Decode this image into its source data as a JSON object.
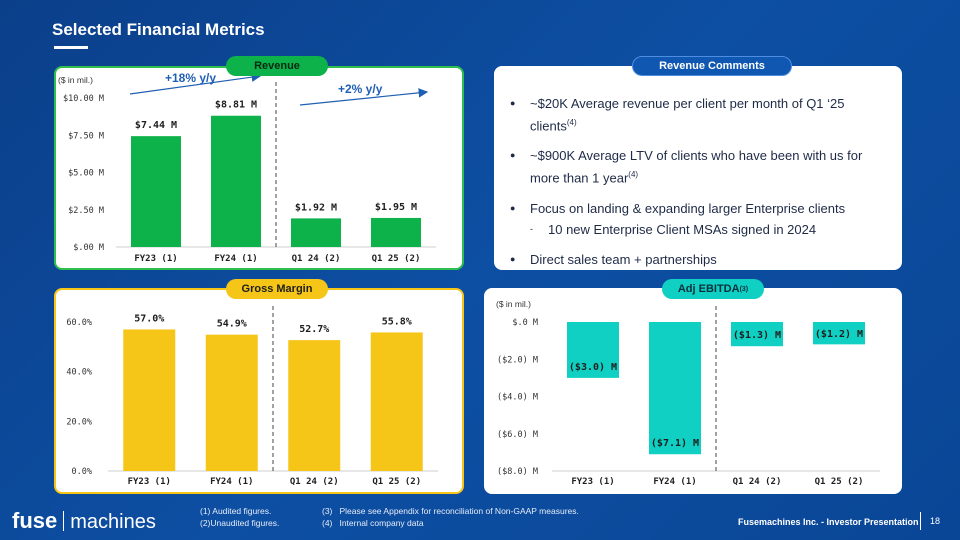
{
  "title": "Selected Financial Metrics",
  "revenue": {
    "pill": "Revenue",
    "unit_note": "($ in mil.)",
    "growth_label_1": "+18% y/y",
    "growth_label_2": "+2% y/y",
    "chart_data": {
      "type": "bar",
      "categories": [
        "FY23 (1)",
        "FY24 (1)",
        "Q1 24 (2)",
        "Q1 25 (2)"
      ],
      "values": [
        7.44,
        8.81,
        1.92,
        1.95
      ],
      "data_labels": [
        "$7.44 M",
        "$8.81 M",
        "$1.92 M",
        "$1.95 M"
      ],
      "ylim": [
        0,
        10
      ],
      "yticks": [
        0,
        2.5,
        5,
        7.5,
        10
      ],
      "ytick_labels": [
        "$.00 M",
        "$2.50 M",
        "$5.00 M",
        "$7.50 M",
        "$10.00 M"
      ],
      "color": "#0db24b"
    }
  },
  "revenue_comments": {
    "pill": "Revenue Comments",
    "bullets": [
      {
        "text": "~$20K Average revenue per client per month of Q1 ‘25 clients",
        "sup": "(4)"
      },
      {
        "text": "~$900K Average LTV of clients who have been with us for more than 1 year",
        "sup": "(4)"
      },
      {
        "text": "Focus on landing & expanding larger Enterprise clients",
        "sup": ""
      },
      {
        "text": "Direct sales team + partnerships",
        "sup": ""
      }
    ],
    "sub_bullet": "10 new Enterprise Client MSAs signed in 2024"
  },
  "gross_margin": {
    "pill": "Gross Margin",
    "chart_data": {
      "type": "bar",
      "categories": [
        "FY23 (1)",
        "FY24 (1)",
        "Q1 24 (2)",
        "Q1 25 (2)"
      ],
      "values": [
        57.0,
        54.9,
        52.7,
        55.8
      ],
      "data_labels": [
        "57.0%",
        "54.9%",
        "52.7%",
        "55.8%"
      ],
      "ylim": [
        0,
        60
      ],
      "yticks": [
        0,
        20,
        40,
        60
      ],
      "ytick_labels": [
        "0.0%",
        "20.0%",
        "40.0%",
        "60.0%"
      ],
      "color": "#f5c518"
    }
  },
  "adj_ebitda": {
    "pill": "Adj EBITDA",
    "pill_sup": "(3)",
    "unit_note": "($ in mil.)",
    "chart_data": {
      "type": "bar",
      "categories": [
        "FY23 (1)",
        "FY24 (1)",
        "Q1 24 (2)",
        "Q1 25 (2)"
      ],
      "values": [
        -3.0,
        -7.1,
        -1.3,
        -1.2
      ],
      "data_labels": [
        "($3.0) M",
        "($7.1) M",
        "($1.3) M",
        "($1.2) M"
      ],
      "ylim": [
        -8,
        0
      ],
      "yticks": [
        0,
        -2,
        -4,
        -6,
        -8
      ],
      "ytick_labels": [
        "$.0 M",
        "($2.0) M",
        "($4.0) M",
        "($6.0) M",
        "($8.0) M"
      ],
      "color": "#0fd0c2"
    }
  },
  "footnotes": {
    "f1": "(1) Audited figures.",
    "f2": "(2)Unaudited figures.",
    "f3": "(3)   Please see Appendix for reconciliation of Non-GAAP measures.",
    "f4": "(4)   Internal company data"
  },
  "logo": {
    "bold": "fuse",
    "light": "machines"
  },
  "presentation_label": "Fusemachines Inc. - Investor Presentation",
  "page_number": "18",
  "colors": {
    "background": "#0b3f8a",
    "green": "#0db24b",
    "yellow": "#f5c518",
    "teal": "#0fd0c2",
    "text_dark": "#1e2a46"
  }
}
